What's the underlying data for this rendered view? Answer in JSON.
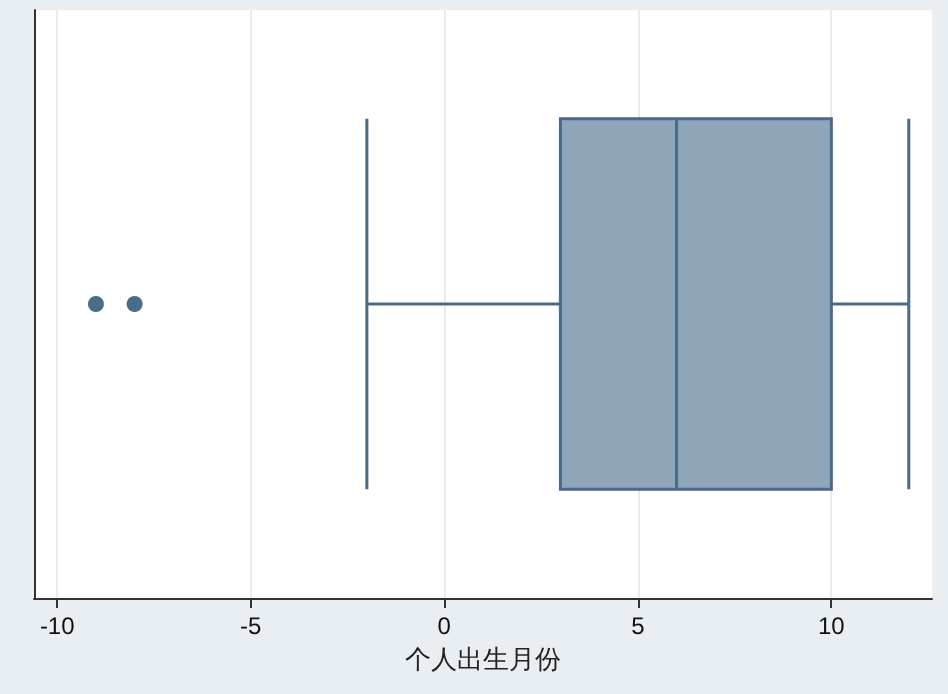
{
  "chart_data": {
    "type": "box",
    "orientation": "horizontal",
    "xlabel": "个人出生月份",
    "categories": [
      null
    ],
    "boxes": [
      {
        "low": -2,
        "q1": 3,
        "median": 6,
        "q3": 10,
        "high": 12,
        "outliers": [
          -9,
          -8
        ]
      }
    ],
    "color": "#8fa5b9",
    "xlim": [
      -10.6,
      12.6
    ],
    "xticks": [
      -10,
      -5,
      0,
      5,
      10
    ],
    "grid": "x",
    "tick_labels": "x"
  }
}
